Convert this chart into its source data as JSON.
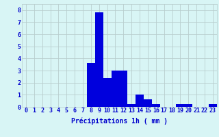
{
  "hours": [
    0,
    1,
    2,
    3,
    4,
    5,
    6,
    7,
    8,
    9,
    10,
    11,
    12,
    13,
    14,
    15,
    16,
    17,
    18,
    19,
    20,
    21,
    22,
    23
  ],
  "values": [
    0,
    0,
    0,
    0,
    0,
    0,
    0,
    0,
    3.6,
    7.8,
    2.4,
    3.0,
    3.0,
    0.2,
    1.0,
    0.6,
    0.2,
    0,
    0,
    0.2,
    0.2,
    0,
    0,
    0.2
  ],
  "bar_color": "#0000dd",
  "background_color": "#d8f5f5",
  "grid_color": "#b8cece",
  "text_color": "#0000cc",
  "xlabel": "Précipitations 1h ( mm )",
  "ylim": [
    0,
    8.5
  ],
  "yticks": [
    0,
    1,
    2,
    3,
    4,
    5,
    6,
    7,
    8
  ],
  "xlabel_fontsize": 7.0,
  "tick_fontsize": 6.0
}
